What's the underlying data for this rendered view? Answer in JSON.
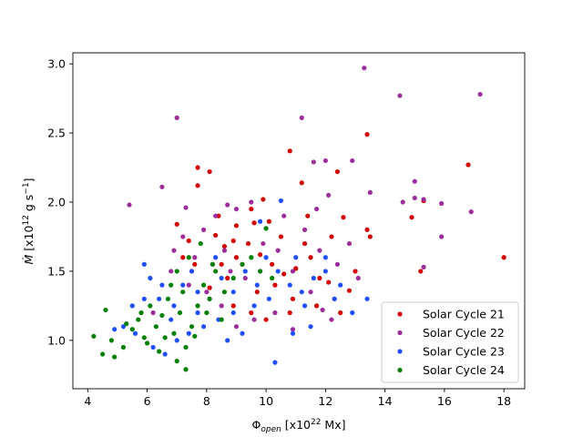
{
  "chart_data": {
    "type": "scatter",
    "xlabel": "Φ_open [x10^22 Mx]",
    "ylabel": "Ṁ [x10^12 g s^-1]",
    "xlim": [
      3.5,
      18.7
    ],
    "ylim": [
      0.65,
      3.08
    ],
    "xticks": [
      4,
      6,
      8,
      10,
      12,
      14,
      16,
      18
    ],
    "yticks": [
      1.0,
      1.5,
      2.0,
      2.5,
      3.0
    ],
    "legend_position": "lower-right",
    "series": [
      {
        "name": "Solar Cycle 21",
        "color": "#d40000",
        "points": [
          [
            7.7,
            2.25
          ],
          [
            8.1,
            2.22
          ],
          [
            7.7,
            2.12
          ],
          [
            9.9,
            2.02
          ],
          [
            9.5,
            1.95
          ],
          [
            9.0,
            1.83
          ],
          [
            9.6,
            1.85
          ],
          [
            10.8,
            2.37
          ],
          [
            11.2,
            2.14
          ],
          [
            12.4,
            2.22
          ],
          [
            12.6,
            1.89
          ],
          [
            13.4,
            2.49
          ],
          [
            13.4,
            1.8
          ],
          [
            13.5,
            1.75
          ],
          [
            14.9,
            1.89
          ],
          [
            15.3,
            2.01
          ],
          [
            15.2,
            1.5
          ],
          [
            16.8,
            2.27
          ],
          [
            18.0,
            1.6
          ],
          [
            7.0,
            1.84
          ],
          [
            7.4,
            1.72
          ],
          [
            8.3,
            1.76
          ],
          [
            8.6,
            1.68
          ],
          [
            9.4,
            1.7
          ],
          [
            9.8,
            1.62
          ],
          [
            10.2,
            1.55
          ],
          [
            10.6,
            1.48
          ],
          [
            11.0,
            1.52
          ],
          [
            11.5,
            1.6
          ],
          [
            12.1,
            1.42
          ],
          [
            12.8,
            1.36
          ],
          [
            13.0,
            1.5
          ],
          [
            12.2,
            1.75
          ],
          [
            11.4,
            1.9
          ],
          [
            10.5,
            1.75
          ],
          [
            9.2,
            1.55
          ],
          [
            8.7,
            1.45
          ],
          [
            8.1,
            1.38
          ],
          [
            7.6,
            1.55
          ],
          [
            9.0,
            1.6
          ],
          [
            9.7,
            1.35
          ],
          [
            10.3,
            1.4
          ],
          [
            10.9,
            1.3
          ],
          [
            11.7,
            1.25
          ],
          [
            12.5,
            1.2
          ],
          [
            8.9,
            1.25
          ],
          [
            9.5,
            1.2
          ],
          [
            10.0,
            1.15
          ],
          [
            7.5,
            1.5
          ],
          [
            7.2,
            1.6
          ],
          [
            8.5,
            1.55
          ],
          [
            11.3,
            1.7
          ],
          [
            12.3,
            1.3
          ],
          [
            8.4,
            1.9
          ],
          [
            8.9,
            1.72
          ],
          [
            10.1,
            1.86
          ],
          [
            10.8,
            1.2
          ],
          [
            11.8,
            1.45
          ]
        ]
      },
      {
        "name": "Solar Cycle 22",
        "color": "#9b2e9b",
        "points": [
          [
            13.3,
            2.97
          ],
          [
            14.5,
            2.77
          ],
          [
            17.2,
            2.78
          ],
          [
            7.0,
            2.61
          ],
          [
            11.2,
            2.61
          ],
          [
            12.0,
            2.3
          ],
          [
            12.9,
            2.3
          ],
          [
            11.6,
            2.29
          ],
          [
            13.5,
            2.07
          ],
          [
            14.6,
            2.0
          ],
          [
            15.0,
            2.15
          ],
          [
            15.0,
            2.03
          ],
          [
            15.3,
            2.02
          ],
          [
            15.9,
            1.99
          ],
          [
            16.9,
            1.93
          ],
          [
            15.9,
            1.75
          ],
          [
            15.3,
            1.53
          ],
          [
            5.4,
            1.98
          ],
          [
            6.5,
            2.11
          ],
          [
            7.3,
            1.96
          ],
          [
            8.7,
            1.98
          ],
          [
            9.0,
            1.95
          ],
          [
            9.5,
            2.0
          ],
          [
            8.3,
            1.9
          ],
          [
            7.9,
            1.8
          ],
          [
            7.2,
            1.75
          ],
          [
            6.9,
            1.65
          ],
          [
            7.6,
            1.6
          ],
          [
            8.2,
            1.55
          ],
          [
            8.8,
            1.5
          ],
          [
            9.3,
            1.45
          ],
          [
            9.8,
            1.5
          ],
          [
            10.4,
            1.65
          ],
          [
            10.9,
            1.5
          ],
          [
            11.5,
            1.35
          ],
          [
            11.9,
            1.22
          ],
          [
            12.2,
            1.15
          ],
          [
            10.9,
            1.08
          ],
          [
            10.3,
            1.2
          ],
          [
            9.6,
            1.15
          ],
          [
            9.0,
            1.1
          ],
          [
            8.5,
            1.25
          ],
          [
            8.0,
            1.35
          ],
          [
            7.4,
            1.4
          ],
          [
            6.8,
            1.5
          ],
          [
            11.7,
            1.95
          ],
          [
            12.1,
            2.05
          ],
          [
            11.3,
            1.8
          ],
          [
            10.6,
            1.9
          ],
          [
            9.9,
            1.7
          ],
          [
            8.6,
            1.65
          ],
          [
            12.4,
            1.55
          ],
          [
            12.8,
            1.7
          ],
          [
            13.1,
            1.45
          ],
          [
            11.8,
            1.65
          ],
          [
            6.2,
            1.2
          ]
        ]
      },
      {
        "name": "Solar Cycle 23",
        "color": "#1f4fff",
        "points": [
          [
            5.9,
            1.55
          ],
          [
            6.1,
            1.45
          ],
          [
            5.9,
            1.3
          ],
          [
            6.5,
            1.4
          ],
          [
            6.9,
            1.25
          ],
          [
            7.2,
            1.4
          ],
          [
            7.7,
            1.35
          ],
          [
            8.1,
            1.3
          ],
          [
            8.5,
            1.45
          ],
          [
            8.9,
            1.35
          ],
          [
            9.3,
            1.5
          ],
          [
            9.7,
            1.4
          ],
          [
            10.0,
            1.6
          ],
          [
            10.4,
            1.5
          ],
          [
            10.8,
            1.4
          ],
          [
            11.2,
            1.35
          ],
          [
            11.6,
            1.45
          ],
          [
            12.0,
            1.5
          ],
          [
            12.5,
            1.4
          ],
          [
            12.9,
            1.2
          ],
          [
            13.4,
            1.3
          ],
          [
            10.5,
            2.01
          ],
          [
            9.8,
            1.86
          ],
          [
            8.9,
            1.2
          ],
          [
            8.4,
            1.15
          ],
          [
            7.9,
            1.1
          ],
          [
            7.4,
            1.05
          ],
          [
            7.0,
            1.0
          ],
          [
            6.6,
            0.9
          ],
          [
            6.2,
            0.95
          ],
          [
            5.6,
            1.05
          ],
          [
            5.2,
            1.1
          ],
          [
            4.9,
            1.08
          ],
          [
            6.8,
            1.15
          ],
          [
            9.2,
            1.05
          ],
          [
            10.3,
            0.84
          ],
          [
            10.9,
            1.05
          ],
          [
            11.5,
            1.1
          ],
          [
            12.3,
            1.3
          ],
          [
            11.0,
            1.6
          ],
          [
            9.6,
            1.25
          ],
          [
            8.7,
            1.0
          ],
          [
            7.7,
            1.2
          ],
          [
            6.4,
            1.3
          ],
          [
            5.5,
            1.25
          ],
          [
            10.1,
            1.3
          ],
          [
            11.3,
            1.25
          ],
          [
            12.0,
            1.6
          ],
          [
            8.3,
            1.6
          ],
          [
            7.5,
            1.5
          ]
        ]
      },
      {
        "name": "Solar Cycle 24",
        "color": "#008000",
        "points": [
          [
            4.2,
            1.03
          ],
          [
            4.5,
            0.9
          ],
          [
            4.6,
            1.22
          ],
          [
            4.8,
            1.0
          ],
          [
            5.2,
            0.95
          ],
          [
            5.5,
            1.08
          ],
          [
            5.7,
            1.15
          ],
          [
            5.9,
            1.02
          ],
          [
            6.1,
            1.25
          ],
          [
            6.3,
            1.1
          ],
          [
            6.5,
            1.18
          ],
          [
            6.7,
            1.3
          ],
          [
            6.9,
            1.05
          ],
          [
            7.1,
            1.2
          ],
          [
            7.3,
            0.95
          ],
          [
            7.3,
            0.79
          ],
          [
            7.5,
            1.1
          ],
          [
            7.7,
            1.25
          ],
          [
            7.9,
            1.4
          ],
          [
            8.1,
            1.3
          ],
          [
            8.3,
            1.5
          ],
          [
            8.6,
            1.35
          ],
          [
            8.9,
            1.45
          ],
          [
            9.2,
            1.55
          ],
          [
            9.5,
            1.6
          ],
          [
            9.8,
            1.5
          ],
          [
            10.0,
            1.81
          ],
          [
            10.2,
            1.45
          ],
          [
            7.0,
            1.5
          ],
          [
            7.4,
            1.6
          ],
          [
            7.8,
            1.7
          ],
          [
            8.2,
            1.55
          ],
          [
            6.8,
            1.4
          ],
          [
            6.0,
            0.98
          ],
          [
            5.3,
            1.12
          ],
          [
            4.9,
            0.88
          ],
          [
            6.6,
            1.02
          ],
          [
            7.6,
            1.03
          ],
          [
            8.0,
            1.2
          ],
          [
            8.5,
            1.15
          ],
          [
            7.2,
            1.35
          ],
          [
            6.4,
            0.92
          ],
          [
            5.8,
            1.2
          ],
          [
            7.0,
            0.85
          ]
        ]
      }
    ]
  }
}
